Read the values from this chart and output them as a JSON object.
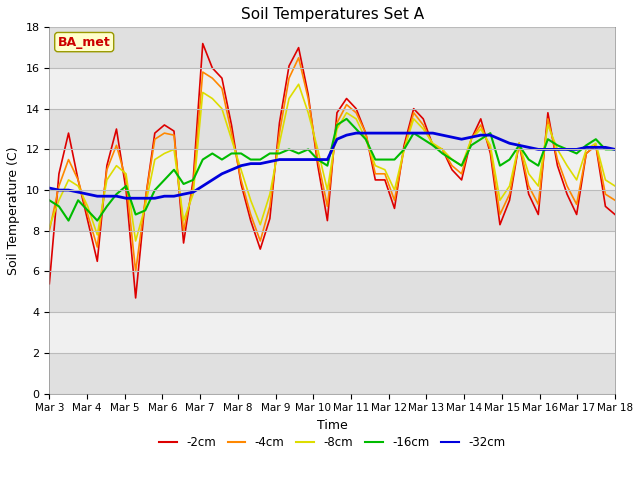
{
  "title": "Soil Temperatures Set A",
  "xlabel": "Time",
  "ylabel": "Soil Temperature (C)",
  "annotation": "BA_met",
  "ylim": [
    0,
    18
  ],
  "xtick_labels": [
    "Mar 3",
    "Mar 4",
    "Mar 5",
    "Mar 6",
    "Mar 7",
    "Mar 8",
    "Mar 9",
    "Mar 10",
    "Mar 11",
    "Mar 12",
    "Mar 13",
    "Mar 14",
    "Mar 15",
    "Mar 16",
    "Mar 17",
    "Mar 18"
  ],
  "series_order": [
    "-2cm",
    "-4cm",
    "-8cm",
    "-16cm",
    "-32cm"
  ],
  "series": {
    "-2cm": {
      "color": "#dd0000",
      "lw": 1.2
    },
    "-4cm": {
      "color": "#ff8800",
      "lw": 1.2
    },
    "-8cm": {
      "color": "#dddd00",
      "lw": 1.2
    },
    "-16cm": {
      "color": "#00bb00",
      "lw": 1.5
    },
    "-32cm": {
      "color": "#0000dd",
      "lw": 2.0
    }
  },
  "background_alternating": [
    "#e0e0e0",
    "#f0f0f0"
  ],
  "data": {
    "-2cm": [
      5.4,
      10.8,
      12.8,
      10.5,
      8.5,
      6.5,
      11.2,
      13.0,
      10.0,
      4.7,
      9.5,
      12.8,
      13.2,
      12.9,
      7.4,
      10.5,
      17.2,
      16.0,
      15.5,
      13.2,
      10.3,
      8.5,
      7.1,
      8.6,
      13.3,
      16.1,
      17.0,
      14.7,
      11.2,
      8.5,
      13.8,
      14.5,
      14.0,
      12.8,
      10.5,
      10.5,
      9.1,
      12.2,
      14.0,
      13.5,
      12.2,
      12.0,
      11.0,
      10.5,
      12.5,
      13.5,
      11.8,
      8.3,
      9.5,
      12.3,
      9.8,
      8.8,
      13.8,
      11.2,
      9.8,
      8.8,
      11.8,
      12.2,
      9.2,
      8.8
    ],
    "-4cm": [
      8.0,
      10.2,
      11.5,
      10.5,
      8.8,
      7.2,
      11.0,
      12.2,
      10.5,
      6.0,
      9.5,
      12.5,
      12.8,
      12.7,
      8.0,
      10.2,
      15.8,
      15.5,
      15.0,
      12.8,
      10.5,
      8.8,
      7.5,
      9.2,
      12.8,
      15.5,
      16.5,
      14.5,
      11.5,
      9.2,
      13.3,
      14.2,
      13.8,
      12.8,
      10.8,
      10.8,
      9.5,
      12.0,
      13.8,
      13.2,
      12.2,
      12.0,
      11.2,
      10.8,
      12.5,
      13.2,
      12.0,
      8.8,
      9.8,
      12.3,
      10.2,
      9.3,
      13.5,
      11.5,
      10.2,
      9.3,
      11.8,
      12.2,
      9.8,
      9.5
    ],
    "-8cm": [
      8.2,
      9.5,
      10.5,
      10.2,
      9.2,
      7.8,
      10.5,
      11.2,
      10.8,
      7.5,
      9.2,
      11.5,
      11.8,
      12.0,
      8.5,
      9.8,
      14.8,
      14.5,
      14.0,
      12.5,
      11.0,
      9.5,
      8.3,
      9.8,
      12.3,
      14.5,
      15.2,
      13.8,
      12.0,
      10.0,
      13.0,
      13.8,
      13.5,
      12.5,
      11.2,
      11.0,
      10.0,
      12.0,
      13.5,
      13.0,
      12.3,
      12.0,
      11.5,
      11.2,
      12.5,
      13.0,
      12.2,
      9.5,
      10.2,
      12.3,
      10.8,
      10.2,
      13.2,
      12.0,
      11.2,
      10.5,
      12.0,
      12.3,
      10.5,
      10.2
    ],
    "-16cm": [
      9.5,
      9.2,
      8.5,
      9.5,
      9.0,
      8.5,
      9.2,
      9.8,
      10.2,
      8.8,
      9.0,
      10.0,
      10.5,
      11.0,
      10.3,
      10.5,
      11.5,
      11.8,
      11.5,
      11.8,
      11.8,
      11.5,
      11.5,
      11.8,
      11.8,
      12.0,
      11.8,
      12.0,
      11.5,
      11.2,
      13.2,
      13.5,
      13.0,
      12.5,
      11.5,
      11.5,
      11.5,
      12.0,
      12.8,
      12.5,
      12.2,
      11.8,
      11.5,
      11.2,
      12.2,
      12.5,
      12.8,
      11.2,
      11.5,
      12.2,
      11.5,
      11.2,
      12.5,
      12.2,
      12.0,
      11.8,
      12.2,
      12.5,
      12.0,
      12.0
    ],
    "-32cm": [
      10.1,
      10.0,
      10.0,
      9.9,
      9.8,
      9.7,
      9.7,
      9.7,
      9.6,
      9.6,
      9.6,
      9.6,
      9.7,
      9.7,
      9.8,
      9.9,
      10.2,
      10.5,
      10.8,
      11.0,
      11.2,
      11.3,
      11.3,
      11.4,
      11.5,
      11.5,
      11.5,
      11.5,
      11.5,
      11.5,
      12.5,
      12.7,
      12.8,
      12.8,
      12.8,
      12.8,
      12.8,
      12.8,
      12.8,
      12.8,
      12.8,
      12.7,
      12.6,
      12.5,
      12.6,
      12.7,
      12.7,
      12.5,
      12.3,
      12.2,
      12.1,
      12.0,
      12.0,
      12.0,
      12.0,
      12.0,
      12.1,
      12.1,
      12.1,
      12.0
    ]
  }
}
